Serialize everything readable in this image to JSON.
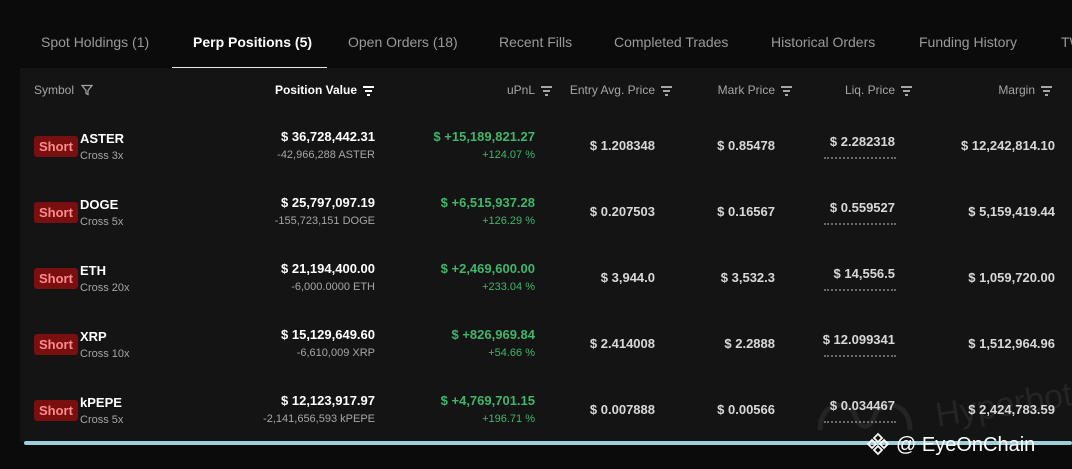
{
  "tabs": [
    {
      "label": "Spot Holdings (1)",
      "active": false
    },
    {
      "label": "Perp Positions (5)",
      "active": true
    },
    {
      "label": "Open Orders (18)",
      "active": false
    },
    {
      "label": "Recent Fills",
      "active": false
    },
    {
      "label": "Completed Trades",
      "active": false
    },
    {
      "label": "Historical Orders",
      "active": false
    },
    {
      "label": "Funding History",
      "active": false
    },
    {
      "label": "TW",
      "active": false
    }
  ],
  "columns": {
    "symbol": "Symbol",
    "position_value": "Position Value",
    "upnl": "uPnL",
    "entry": "Entry Avg. Price",
    "mark": "Mark Price",
    "liq": "Liq. Price",
    "margin": "Margin"
  },
  "rows": [
    {
      "side": "Short",
      "symbol": "ASTER",
      "leverage": "Cross 3x",
      "value": "$ 36,728,442.31",
      "size": "-42,966,288 ASTER",
      "upnl": "$ +15,189,821.27",
      "upnl_pct": "+124.07 %",
      "entry": "$ 1.208348",
      "mark": "$ 0.85478",
      "liq": "$ 2.282318",
      "margin": "$ 12,242,814.10"
    },
    {
      "side": "Short",
      "symbol": "DOGE",
      "leverage": "Cross 5x",
      "value": "$ 25,797,097.19",
      "size": "-155,723,151 DOGE",
      "upnl": "$ +6,515,937.28",
      "upnl_pct": "+126.29 %",
      "entry": "$ 0.207503",
      "mark": "$ 0.16567",
      "liq": "$ 0.559527",
      "margin": "$ 5,159,419.44"
    },
    {
      "side": "Short",
      "symbol": "ETH",
      "leverage": "Cross 20x",
      "value": "$ 21,194,400.00",
      "size": "-6,000.0000 ETH",
      "upnl": "$ +2,469,600.00",
      "upnl_pct": "+233.04 %",
      "entry": "$ 3,944.0",
      "mark": "$ 3,532.3",
      "liq": "$ 14,556.5",
      "margin": "$ 1,059,720.00"
    },
    {
      "side": "Short",
      "symbol": "XRP",
      "leverage": "Cross 10x",
      "value": "$ 15,129,649.60",
      "size": "-6,610,009 XRP",
      "upnl": "$ +826,969.84",
      "upnl_pct": "+54.66 %",
      "entry": "$ 2.414008",
      "mark": "$ 2.2888",
      "liq": "$ 12.099341",
      "margin": "$ 1,512,964.96"
    },
    {
      "side": "Short",
      "symbol": "kPEPE",
      "leverage": "Cross 5x",
      "value": "$ 12,123,917.97",
      "size": "-2,141,656,593 kPEPE",
      "upnl": "$ +4,769,701.15",
      "upnl_pct": "+196.71 %",
      "entry": "$ 0.007888",
      "mark": "$ 0.00566",
      "liq": "$ 0.034467",
      "margin": "$ 2,424,783.59"
    }
  ],
  "watermark": "Hyperbot",
  "credit": "@ EyeOnChain",
  "colors": {
    "profit": "#3fb66b",
    "short_badge_bg": "#7a0f0f",
    "short_badge_text": "#ff8a8a",
    "accent_bar": "#9fd0da"
  }
}
